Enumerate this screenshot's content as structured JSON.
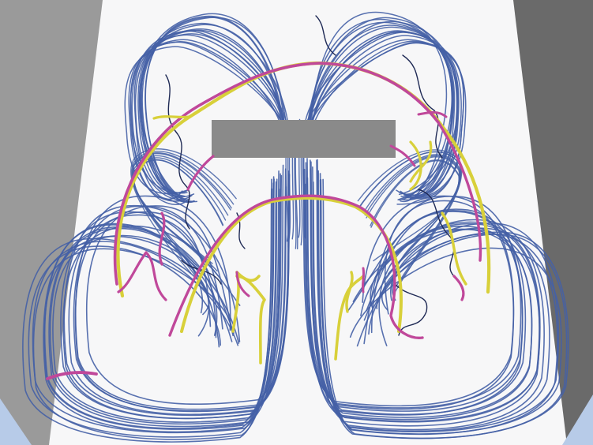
{
  "scene": {
    "kind": "streamline-visualization",
    "colors": {
      "background": "#ffffff",
      "floor": "#f7f7f8",
      "left_wall": "#9a9a9a",
      "right_wall": "#6a6a6a",
      "corner_tint": "#b7cbe8",
      "obstacle": "#8a8a8a",
      "streamline_blue": "#4561a6",
      "streamline_dark": "#1f2a55",
      "highlight_magenta": "#c0489a",
      "highlight_yellow": "#d8d03a"
    },
    "layers": [
      "room-walls",
      "floor",
      "obstacle-block",
      "blue-streamlines",
      "highlight-streamlines"
    ]
  }
}
